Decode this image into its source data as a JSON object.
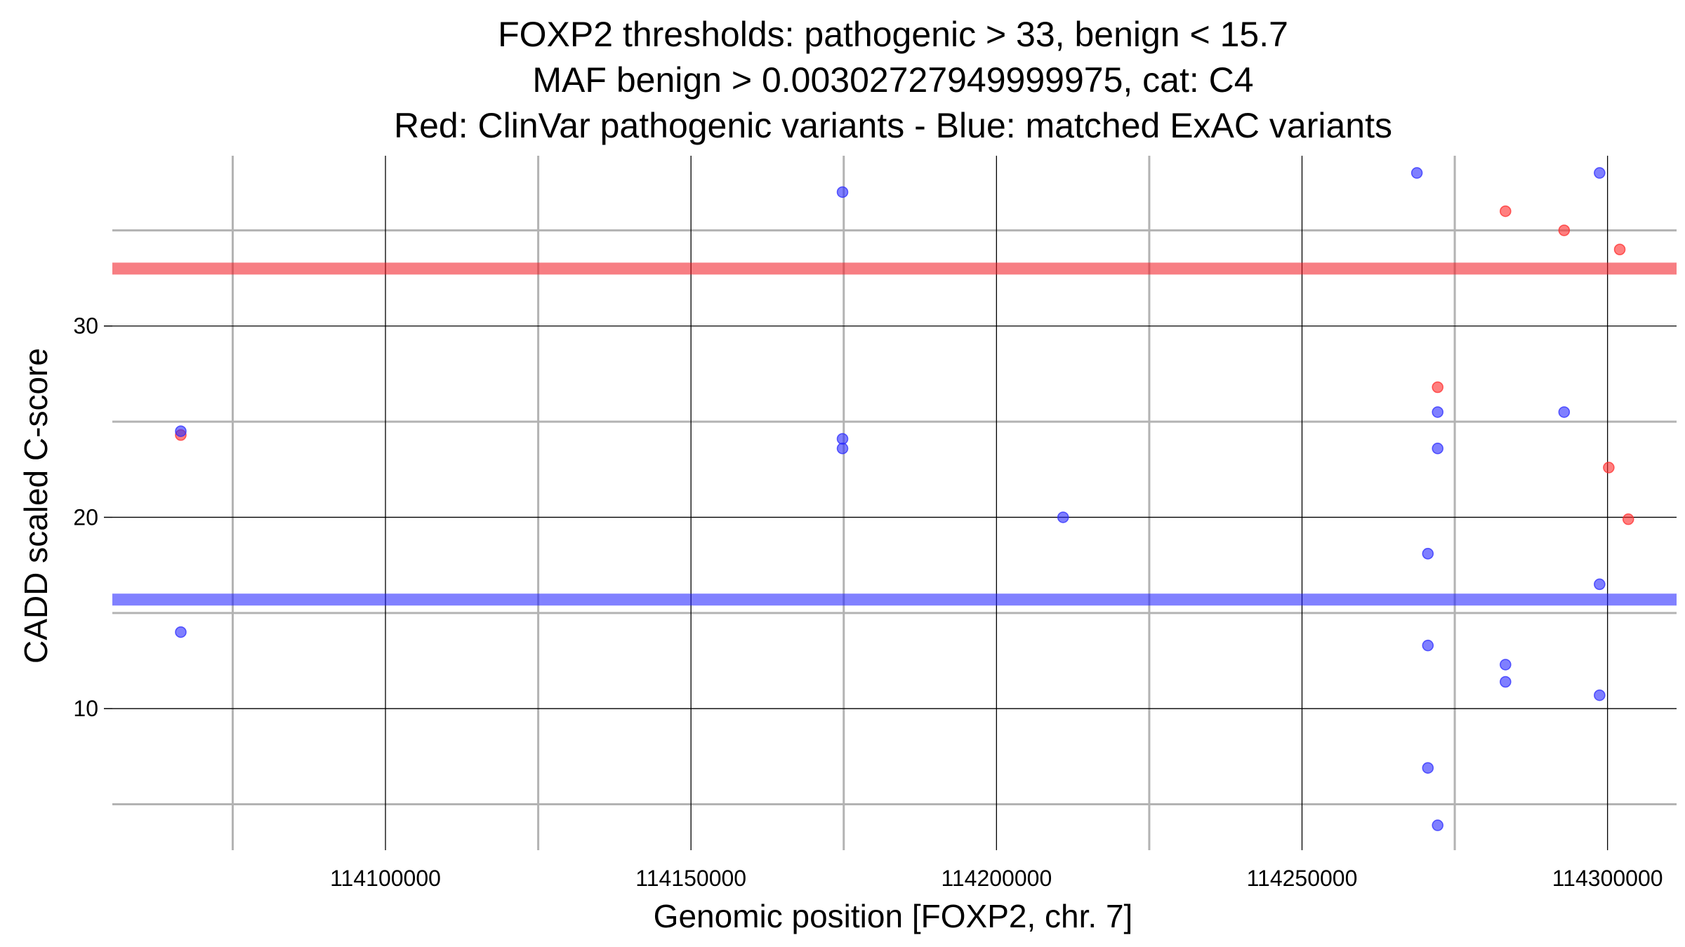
{
  "chart_data": {
    "type": "scatter",
    "title_lines": [
      "FOXP2 thresholds: pathogenic > 33, benign < 15.7",
      "MAF benign > 0.00302727949999975, cat: C4",
      "Red: ClinVar pathogenic variants - Blue: matched ExAC variants"
    ],
    "xlabel": "Genomic position [FOXP2, chr. 7]",
    "ylabel": "CADD scaled C-score",
    "xlim": [
      114055300,
      114311300
    ],
    "ylim": [
      2.6,
      38.9
    ],
    "x_major_ticks": [
      114100000,
      114150000,
      114200000,
      114250000,
      114300000
    ],
    "x_minor_ticks": [
      114075000,
      114125000,
      114175000,
      114225000,
      114275000
    ],
    "x_tick_labels": [
      "114100000",
      "114150000",
      "114200000",
      "114250000",
      "114300000"
    ],
    "y_major_ticks": [
      10,
      20,
      30
    ],
    "y_minor_ticks": [
      5,
      15,
      25,
      35
    ],
    "y_tick_labels": [
      "10",
      "20",
      "30"
    ],
    "thresholds": [
      {
        "name": "pathogenic",
        "value": 33,
        "color": "#f0141e"
      },
      {
        "name": "benign",
        "value": 15.7,
        "color": "#1a1aff"
      }
    ],
    "series": [
      {
        "name": "ClinVar pathogenic variants",
        "color": "#ff2a2a",
        "points": [
          {
            "x": 114066500,
            "y": 24.3
          },
          {
            "x": 114272200,
            "y": 26.8
          },
          {
            "x": 114283300,
            "y": 36.0
          },
          {
            "x": 114292900,
            "y": 35.0
          },
          {
            "x": 114300200,
            "y": 22.6
          },
          {
            "x": 114302000,
            "y": 34.0
          },
          {
            "x": 114303400,
            "y": 19.9
          }
        ]
      },
      {
        "name": "matched ExAC variants",
        "color": "#2a2aff",
        "points": [
          {
            "x": 114066500,
            "y": 24.5
          },
          {
            "x": 114066500,
            "y": 14.0
          },
          {
            "x": 114174800,
            "y": 37.0
          },
          {
            "x": 114174800,
            "y": 24.1
          },
          {
            "x": 114174800,
            "y": 23.6
          },
          {
            "x": 114210900,
            "y": 20.0
          },
          {
            "x": 114268800,
            "y": 38.0
          },
          {
            "x": 114270600,
            "y": 18.1
          },
          {
            "x": 114270600,
            "y": 13.3
          },
          {
            "x": 114270600,
            "y": 6.9
          },
          {
            "x": 114272200,
            "y": 25.5
          },
          {
            "x": 114272200,
            "y": 23.6
          },
          {
            "x": 114272200,
            "y": 3.9
          },
          {
            "x": 114283300,
            "y": 12.3
          },
          {
            "x": 114283300,
            "y": 11.4
          },
          {
            "x": 114292900,
            "y": 25.5
          },
          {
            "x": 114298700,
            "y": 38.0
          },
          {
            "x": 114298700,
            "y": 16.5
          },
          {
            "x": 114298700,
            "y": 10.7
          }
        ]
      }
    ],
    "grid": true,
    "legend": "none"
  }
}
